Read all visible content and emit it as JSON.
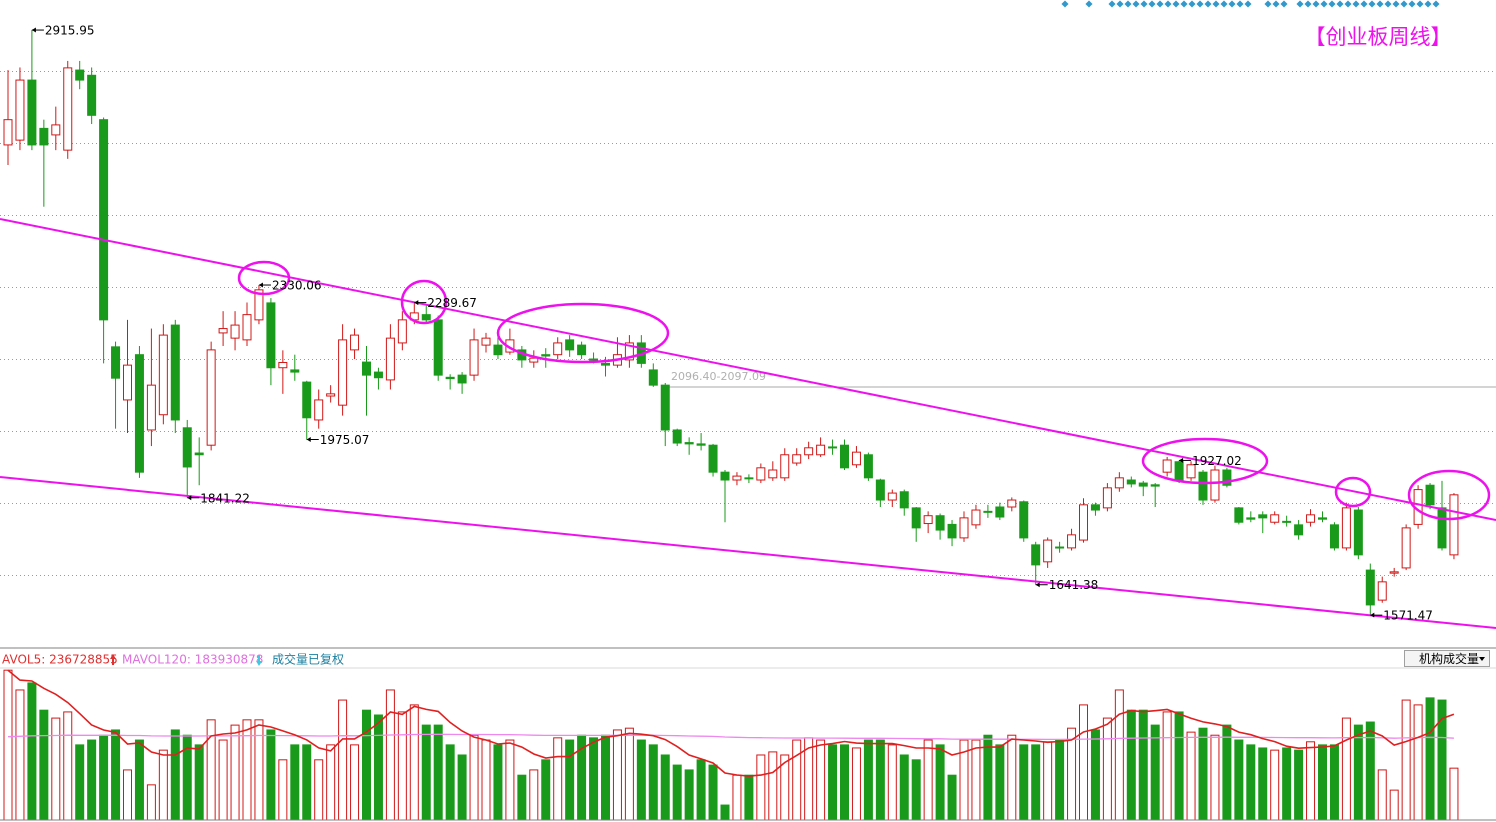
{
  "chart_data": {
    "type": "candlestick",
    "title": "【创业板周线】",
    "range_label": "2096.40-2097.09",
    "ylim": [
      1496,
      2985
    ],
    "vlim": [
      0,
      346000000
    ],
    "up_color": "#d01818",
    "down_color": "#1a9a1a",
    "ma5_color": "#e02020",
    "ma120_color": "#ee88ee",
    "volume_legend": [
      "AVOL5: 236728855",
      "MAVOL120: 183930878",
      "成交量已复权"
    ],
    "volume_selector": "机构成交量",
    "candles": [
      [
        2652,
        2824,
        2606,
        2710
      ],
      [
        2663,
        2830,
        2640,
        2801
      ],
      [
        2801,
        2915.95,
        2640,
        2652
      ],
      [
        2690,
        2710,
        2510,
        2652
      ],
      [
        2675,
        2740,
        2640,
        2698
      ],
      [
        2640,
        2845,
        2620,
        2829
      ],
      [
        2824,
        2845,
        2780,
        2801
      ],
      [
        2812,
        2830,
        2700,
        2720
      ],
      [
        2710,
        2715,
        2150,
        2250
      ],
      [
        2188,
        2200,
        2000,
        2116
      ],
      [
        2066,
        2250,
        1990,
        2146
      ],
      [
        2170,
        2190,
        1887,
        1900
      ],
      [
        1997,
        2230,
        1960,
        2100
      ],
      [
        2032,
        2240,
        2010,
        2215
      ],
      [
        2238,
        2250,
        1990,
        2020
      ],
      [
        2002,
        2020,
        1841.22,
        1912
      ],
      [
        1944,
        1980,
        1870,
        1940
      ],
      [
        1962,
        2200,
        1950,
        2181
      ],
      [
        2220,
        2270,
        2190,
        2230
      ],
      [
        2208,
        2270,
        2180,
        2238
      ],
      [
        2204,
        2290,
        2190,
        2262
      ],
      [
        2250,
        2330.06,
        2240,
        2319
      ],
      [
        2289,
        2300,
        2100,
        2140
      ],
      [
        2140,
        2180,
        2080,
        2152
      ],
      [
        2135,
        2170,
        2110,
        2130
      ],
      [
        2107,
        2110,
        1975.07,
        2025
      ],
      [
        2020,
        2090,
        2000,
        2066
      ],
      [
        2075,
        2100,
        2060,
        2080
      ],
      [
        2054,
        2240,
        2030,
        2204
      ],
      [
        2181,
        2230,
        2160,
        2215
      ],
      [
        2153,
        2190,
        2030,
        2123
      ],
      [
        2130,
        2140,
        2090,
        2117
      ],
      [
        2112,
        2240,
        2090,
        2208
      ],
      [
        2197,
        2270,
        2180,
        2250
      ],
      [
        2250,
        2289.67,
        2240,
        2266
      ],
      [
        2262,
        2285,
        2245,
        2250
      ],
      [
        2250,
        2260,
        2110,
        2123
      ],
      [
        2118,
        2125,
        2090,
        2115
      ],
      [
        2123,
        2130,
        2080,
        2105
      ],
      [
        2123,
        2230,
        2110,
        2204
      ],
      [
        2192,
        2220,
        2175,
        2208
      ],
      [
        2192,
        2210,
        2160,
        2170
      ],
      [
        2176,
        2230,
        2170,
        2204
      ],
      [
        2181,
        2190,
        2140,
        2158
      ],
      [
        2153,
        2180,
        2140,
        2162
      ],
      [
        2170,
        2185,
        2140,
        2167
      ],
      [
        2170,
        2210,
        2160,
        2197
      ],
      [
        2204,
        2215,
        2165,
        2181
      ],
      [
        2192,
        2200,
        2160,
        2170
      ],
      [
        2160,
        2175,
        2150,
        2158
      ],
      [
        2150,
        2165,
        2120,
        2146
      ],
      [
        2146,
        2210,
        2140,
        2170
      ],
      [
        2158,
        2215,
        2140,
        2197
      ],
      [
        2197,
        2215,
        2140,
        2150
      ],
      [
        2135,
        2150,
        2096,
        2100
      ],
      [
        2100,
        2105,
        1960,
        1997
      ],
      [
        1997,
        2000,
        1960,
        1967
      ],
      [
        1968,
        1980,
        1940,
        1965
      ],
      [
        1965,
        1990,
        1950,
        1962
      ],
      [
        1962,
        1965,
        1890,
        1900
      ],
      [
        1900,
        1905,
        1785,
        1882
      ],
      [
        1882,
        1900,
        1870,
        1891
      ],
      [
        1887,
        1895,
        1875,
        1885
      ],
      [
        1882,
        1920,
        1875,
        1910
      ],
      [
        1887,
        1925,
        1880,
        1905
      ],
      [
        1887,
        1955,
        1880,
        1940
      ],
      [
        1921,
        1955,
        1915,
        1940
      ],
      [
        1940,
        1970,
        1930,
        1956
      ],
      [
        1940,
        1980,
        1935,
        1962
      ],
      [
        1958,
        1975,
        1940,
        1956
      ],
      [
        1962,
        1975,
        1905,
        1910
      ],
      [
        1917,
        1960,
        1910,
        1946
      ],
      [
        1940,
        1945,
        1880,
        1887
      ],
      [
        1882,
        1885,
        1820,
        1836
      ],
      [
        1836,
        1860,
        1820,
        1852
      ],
      [
        1855,
        1860,
        1800,
        1818
      ],
      [
        1818,
        1820,
        1740,
        1772
      ],
      [
        1782,
        1810,
        1760,
        1800
      ],
      [
        1800,
        1805,
        1745,
        1767
      ],
      [
        1780,
        1790,
        1730,
        1749
      ],
      [
        1749,
        1810,
        1740,
        1795
      ],
      [
        1779,
        1825,
        1770,
        1813
      ],
      [
        1810,
        1825,
        1795,
        1808
      ],
      [
        1820,
        1830,
        1790,
        1797
      ],
      [
        1820,
        1842,
        1810,
        1836
      ],
      [
        1832,
        1835,
        1740,
        1749
      ],
      [
        1733,
        1740,
        1641.38,
        1687
      ],
      [
        1694,
        1750,
        1680,
        1744
      ],
      [
        1728,
        1740,
        1715,
        1726
      ],
      [
        1726,
        1770,
        1720,
        1756
      ],
      [
        1744,
        1840,
        1738,
        1825
      ],
      [
        1825,
        1830,
        1800,
        1813
      ],
      [
        1818,
        1875,
        1810,
        1864
      ],
      [
        1864,
        1900,
        1855,
        1887
      ],
      [
        1882,
        1890,
        1865,
        1873
      ],
      [
        1875,
        1880,
        1845,
        1868
      ],
      [
        1871,
        1875,
        1820,
        1868
      ],
      [
        1900,
        1935,
        1890,
        1928
      ],
      [
        1924,
        1927.02,
        1875,
        1882
      ],
      [
        1887,
        1925,
        1880,
        1917
      ],
      [
        1900,
        1905,
        1825,
        1836
      ],
      [
        1836,
        1915,
        1830,
        1905
      ],
      [
        1905,
        1910,
        1865,
        1870
      ],
      [
        1818,
        1820,
        1780,
        1785
      ],
      [
        1795,
        1810,
        1785,
        1792
      ],
      [
        1802,
        1810,
        1760,
        1795
      ],
      [
        1785,
        1810,
        1780,
        1802
      ],
      [
        1787,
        1800,
        1775,
        1785
      ],
      [
        1779,
        1790,
        1745,
        1756
      ],
      [
        1785,
        1815,
        1775,
        1802
      ],
      [
        1795,
        1810,
        1785,
        1792
      ],
      [
        1779,
        1785,
        1720,
        1726
      ],
      [
        1726,
        1830,
        1720,
        1818
      ],
      [
        1813,
        1820,
        1700,
        1710
      ],
      [
        1675,
        1690,
        1571.47,
        1595
      ],
      [
        1606,
        1660,
        1600,
        1648
      ],
      [
        1668,
        1680,
        1660,
        1671
      ],
      [
        1680,
        1780,
        1675,
        1772
      ],
      [
        1780,
        1870,
        1770,
        1860
      ],
      [
        1870,
        1875,
        1815,
        1825
      ],
      [
        1818,
        1880,
        1720,
        1726
      ],
      [
        1710,
        1852,
        1700,
        1848
      ]
    ],
    "volumes": [
      341000000,
      296000000,
      312000000,
      250000000,
      232000000,
      246000000,
      171000000,
      182000000,
      193000000,
      205000000,
      114000000,
      182000000,
      80000000,
      159000000,
      205000000,
      193000000,
      171000000,
      228000000,
      182000000,
      216000000,
      228000000,
      228000000,
      205000000,
      137000000,
      171000000,
      171000000,
      137000000,
      171000000,
      273000000,
      171000000,
      250000000,
      239000000,
      296000000,
      246000000,
      262000000,
      216000000,
      216000000,
      171000000,
      148000000,
      193000000,
      182000000,
      171000000,
      182000000,
      102000000,
      114000000,
      137000000,
      187000000,
      182000000,
      193000000,
      187000000,
      193000000,
      205000000,
      209000000,
      182000000,
      171000000,
      148000000,
      125000000,
      114000000,
      137000000,
      125000000,
      34000000,
      102000000,
      102000000,
      148000000,
      155000000,
      148000000,
      182000000,
      187000000,
      182000000,
      171000000,
      171000000,
      164000000,
      182000000,
      182000000,
      171000000,
      148000000,
      137000000,
      182000000,
      171000000,
      102000000,
      182000000,
      182000000,
      193000000,
      171000000,
      193000000,
      171000000,
      171000000,
      178000000,
      182000000,
      209000000,
      262000000,
      205000000,
      232000000,
      296000000,
      250000000,
      250000000,
      216000000,
      246000000,
      246000000,
      200000000,
      209000000,
      193000000,
      216000000,
      182000000,
      171000000,
      164000000,
      159000000,
      164000000,
      159000000,
      178000000,
      171000000,
      171000000,
      232000000,
      216000000,
      223000000,
      114000000,
      68000000,
      273000000,
      262000000,
      278000000,
      273000000,
      118000000
    ]
  }
}
